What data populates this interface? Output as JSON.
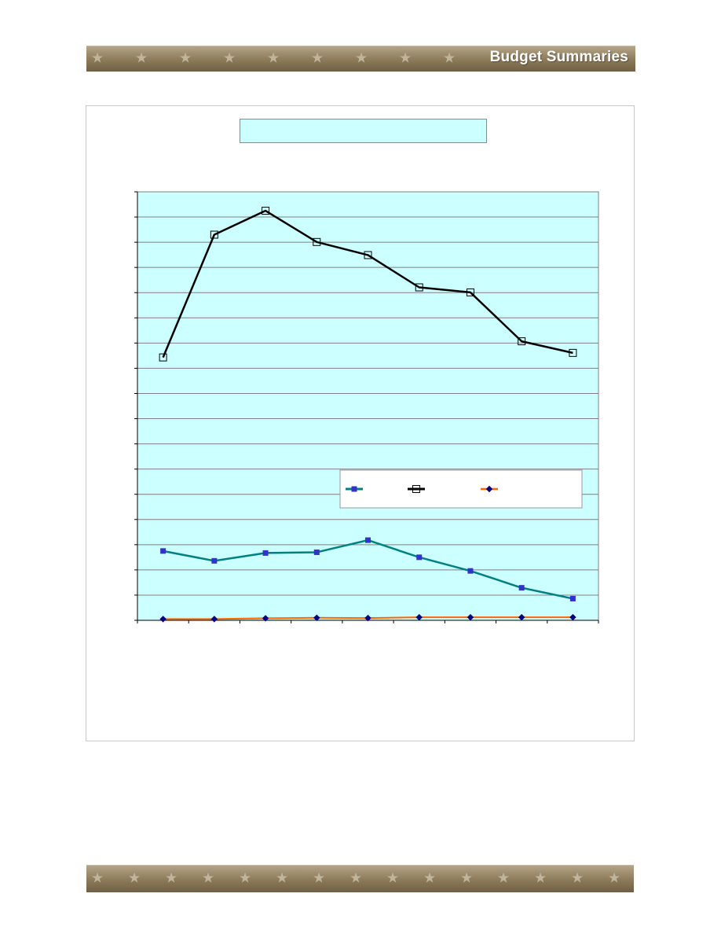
{
  "header": {
    "title": "Budget Summaries"
  },
  "colors": {
    "plot_background": "#ccffff",
    "gridline": "#7f7f7f",
    "series_1": "#008080",
    "series_1_marker": "#3333cc",
    "series_2": "#000000",
    "series_3": "#ff6600",
    "series_3_marker": "#000080",
    "banner": "#8c7a5a"
  },
  "chart_data": {
    "type": "line",
    "title": "",
    "xlabel": "",
    "ylabel": "",
    "ylim": [
      0,
      17
    ],
    "grid": true,
    "legend_position": "lower-right",
    "x": [
      1,
      2,
      3,
      4,
      5,
      6,
      7,
      8,
      9
    ],
    "series": [
      {
        "marker": "square-filled",
        "values": [
          2.75,
          2.36,
          2.67,
          2.7,
          3.18,
          2.5,
          1.96,
          1.29,
          0.86
        ]
      },
      {
        "marker": "square-open",
        "values": [
          10.43,
          15.3,
          16.25,
          15.01,
          14.49,
          13.21,
          13.01,
          11.07,
          10.61
        ]
      },
      {
        "marker": "diamond",
        "values": [
          0.05,
          0.05,
          0.08,
          0.1,
          0.09,
          0.12,
          0.12,
          0.12,
          0.12
        ]
      }
    ]
  }
}
